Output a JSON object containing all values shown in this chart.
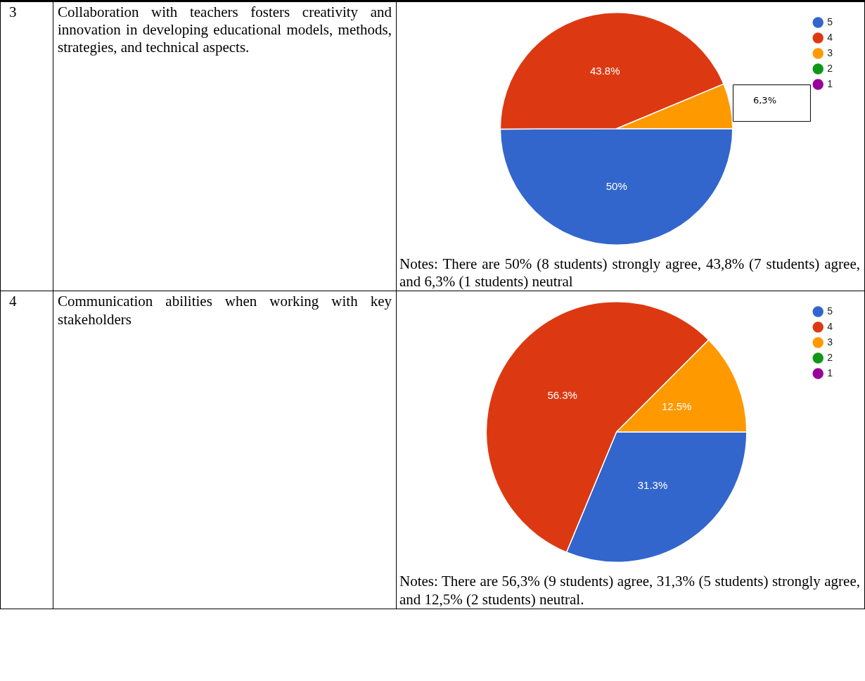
{
  "chart_data": [
    {
      "type": "pie",
      "title": "Collaboration with teachers fosters creativity and innovation in developing educational models, methods, strategies, and technical aspects.",
      "categories": [
        "5",
        "4",
        "3",
        "2",
        "1"
      ],
      "values": [
        50,
        43.8,
        6.3,
        0,
        0
      ],
      "colors": [
        "#3366cc",
        "#dc3912",
        "#ff9900",
        "#109618",
        "#990099"
      ],
      "value_labels": [
        "50%",
        "43.8%",
        "6,3%",
        null,
        null
      ],
      "legend": "top right",
      "annotations": [
        "3",
        "Notes: There are 50% (8 students) strongly agree, 43,8% (7 students) agree, and 6,3% (1 students) neutral"
      ]
    },
    {
      "type": "pie",
      "title": "Communication abilities when working with key stakeholders",
      "categories": [
        "5",
        "4",
        "3",
        "2",
        "1"
      ],
      "values": [
        31.3,
        56.3,
        12.5,
        0,
        0
      ],
      "colors": [
        "#3366cc",
        "#dc3912",
        "#ff9900",
        "#109618",
        "#990099"
      ],
      "value_labels": [
        "31.3%",
        "56.3%",
        "12.5%",
        null,
        null
      ],
      "legend": "top right",
      "annotations": [
        "4",
        "Notes: There are 56,3% (9 students) agree, 31,3% (5 students) strongly agree, and 12,5% (2 students) neutral."
      ]
    }
  ]
}
